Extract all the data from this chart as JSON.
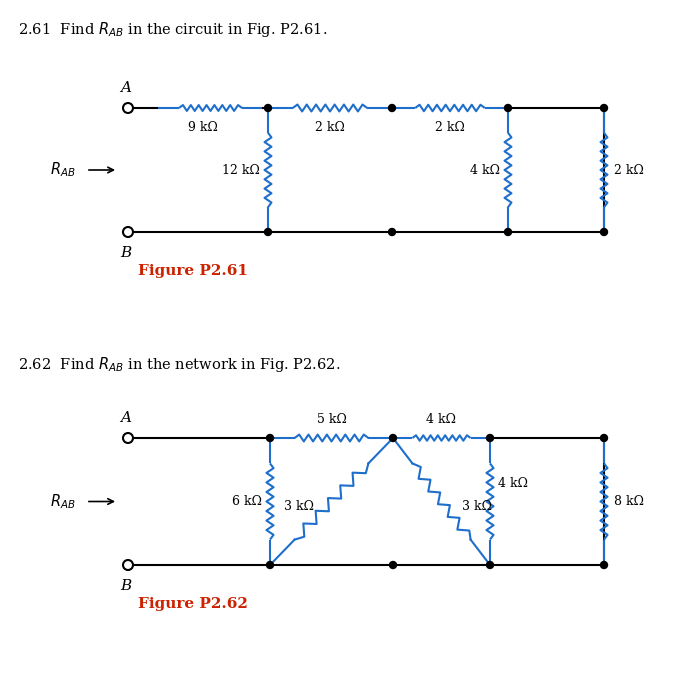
{
  "bg_color": "#ffffff",
  "wire_color": "#000000",
  "resistor_color": "#1e6fcc",
  "fig_label_color": "#cc2200",
  "text_color": "#000000",
  "title1": "2.61  Find $R_{AB}$ in the circuit in Fig. P2.61.",
  "title2": "2.62  Find $R_{AB}$ in the network in Fig. P2.62.",
  "fig1_label": "Figure P2.61",
  "fig2_label": "Figure P2.62"
}
